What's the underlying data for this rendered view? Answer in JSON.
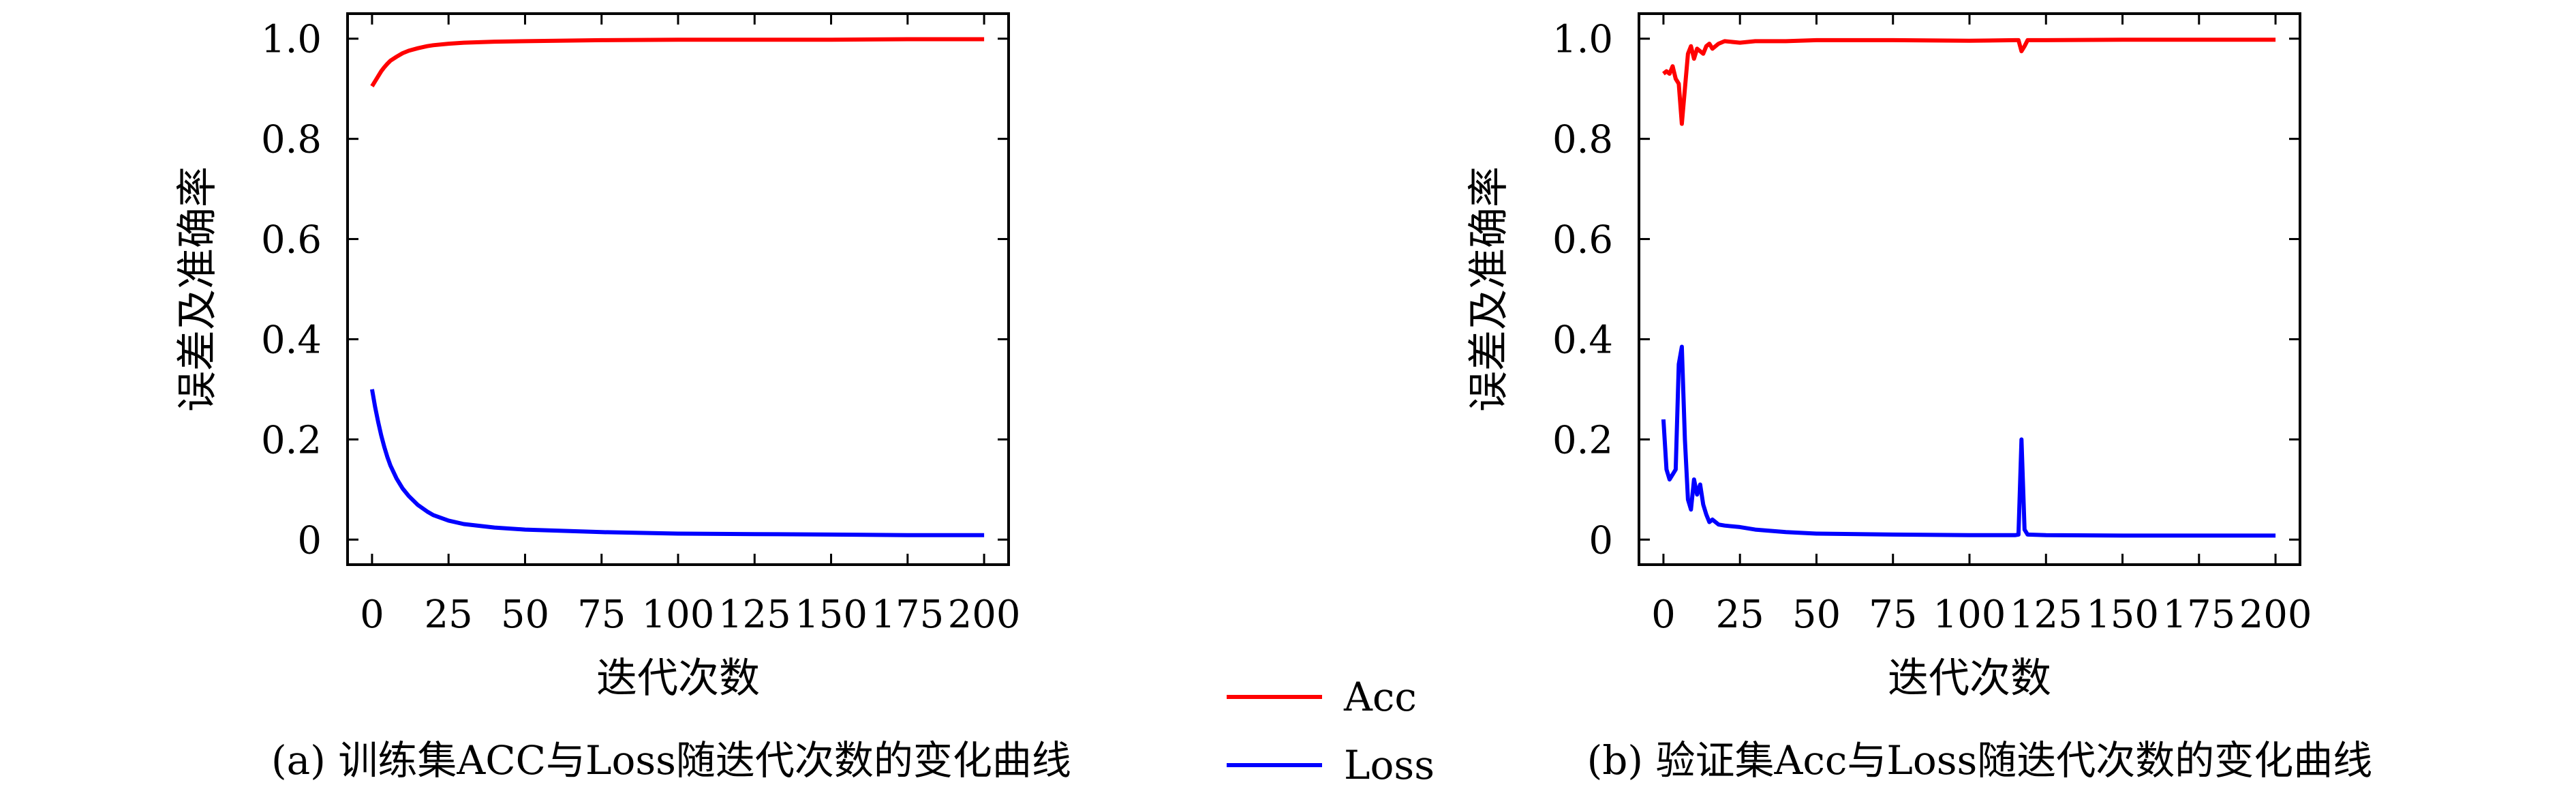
{
  "chart_data": [
    {
      "type": "line",
      "caption": "(a) 训练集ACC与Loss随迭代次数的变化曲线",
      "xlabel": "迭代次数",
      "ylabel": "误差及准确率",
      "xlim": [
        -8,
        208
      ],
      "ylim": [
        -0.05,
        1.05
      ],
      "xticks": [
        0,
        25,
        50,
        75,
        100,
        125,
        150,
        175,
        200
      ],
      "yticks": [
        0,
        0.2,
        0.4,
        0.6,
        0.8,
        1.0
      ],
      "ytick_labels": [
        "0",
        "0.2",
        "0.4",
        "0.6",
        "0.8",
        "1.0"
      ],
      "grid": false,
      "series": [
        {
          "name": "Acc",
          "color": "#ff0000",
          "x": [
            0,
            1,
            2,
            3,
            4,
            5,
            6,
            8,
            10,
            12,
            15,
            18,
            20,
            25,
            30,
            40,
            50,
            75,
            100,
            125,
            150,
            175,
            200
          ],
          "y": [
            0.905,
            0.915,
            0.925,
            0.935,
            0.943,
            0.95,
            0.956,
            0.964,
            0.971,
            0.976,
            0.981,
            0.985,
            0.987,
            0.99,
            0.992,
            0.994,
            0.995,
            0.997,
            0.998,
            0.998,
            0.998,
            0.999,
            0.999
          ]
        },
        {
          "name": "Loss",
          "color": "#0000ff",
          "x": [
            0,
            1,
            2,
            3,
            4,
            5,
            6,
            8,
            10,
            12,
            15,
            18,
            20,
            25,
            30,
            40,
            50,
            75,
            100,
            125,
            150,
            175,
            200
          ],
          "y": [
            0.3,
            0.265,
            0.235,
            0.208,
            0.185,
            0.165,
            0.148,
            0.122,
            0.102,
            0.087,
            0.069,
            0.056,
            0.049,
            0.038,
            0.031,
            0.024,
            0.02,
            0.015,
            0.012,
            0.011,
            0.01,
            0.009,
            0.009
          ]
        }
      ]
    },
    {
      "type": "line",
      "caption": "(b) 验证集Acc与Loss随迭代次数的变化曲线",
      "xlabel": "迭代次数",
      "ylabel": "误差及准确率",
      "xlim": [
        -8,
        208
      ],
      "ylim": [
        -0.05,
        1.05
      ],
      "xticks": [
        0,
        25,
        50,
        75,
        100,
        125,
        150,
        175,
        200
      ],
      "yticks": [
        0,
        0.2,
        0.4,
        0.6,
        0.8,
        1.0
      ],
      "ytick_labels": [
        "0",
        "0.2",
        "0.4",
        "0.6",
        "0.8",
        "1.0"
      ],
      "grid": false,
      "series": [
        {
          "name": "Acc",
          "color": "#ff0000",
          "x": [
            0,
            1,
            2,
            3,
            4,
            5,
            6,
            7,
            8,
            9,
            10,
            11,
            12,
            13,
            14,
            15,
            16,
            18,
            20,
            25,
            30,
            40,
            50,
            75,
            100,
            115,
            116,
            117,
            118,
            119,
            125,
            150,
            175,
            200
          ],
          "y": [
            0.93,
            0.935,
            0.93,
            0.945,
            0.92,
            0.91,
            0.83,
            0.9,
            0.97,
            0.985,
            0.96,
            0.98,
            0.975,
            0.97,
            0.985,
            0.99,
            0.98,
            0.99,
            0.995,
            0.992,
            0.995,
            0.995,
            0.997,
            0.997,
            0.996,
            0.997,
            0.997,
            0.975,
            0.985,
            0.997,
            0.997,
            0.998,
            0.998,
            0.998
          ]
        },
        {
          "name": "Loss",
          "color": "#0000ff",
          "x": [
            0,
            1,
            2,
            3,
            4,
            5,
            6,
            7,
            8,
            9,
            10,
            11,
            12,
            13,
            14,
            15,
            16,
            18,
            20,
            25,
            30,
            40,
            50,
            75,
            100,
            115,
            116,
            117,
            118,
            119,
            125,
            150,
            175,
            200
          ],
          "y": [
            0.24,
            0.14,
            0.12,
            0.13,
            0.14,
            0.35,
            0.385,
            0.2,
            0.08,
            0.06,
            0.12,
            0.09,
            0.11,
            0.07,
            0.05,
            0.035,
            0.04,
            0.03,
            0.028,
            0.025,
            0.02,
            0.015,
            0.012,
            0.01,
            0.009,
            0.009,
            0.01,
            0.2,
            0.02,
            0.01,
            0.009,
            0.008,
            0.008,
            0.008
          ]
        }
      ]
    }
  ],
  "legend": {
    "position": "bottom-center",
    "items": [
      {
        "label": "Acc",
        "color": "#ff0000"
      },
      {
        "label": "Loss",
        "color": "#0000ff"
      }
    ]
  }
}
